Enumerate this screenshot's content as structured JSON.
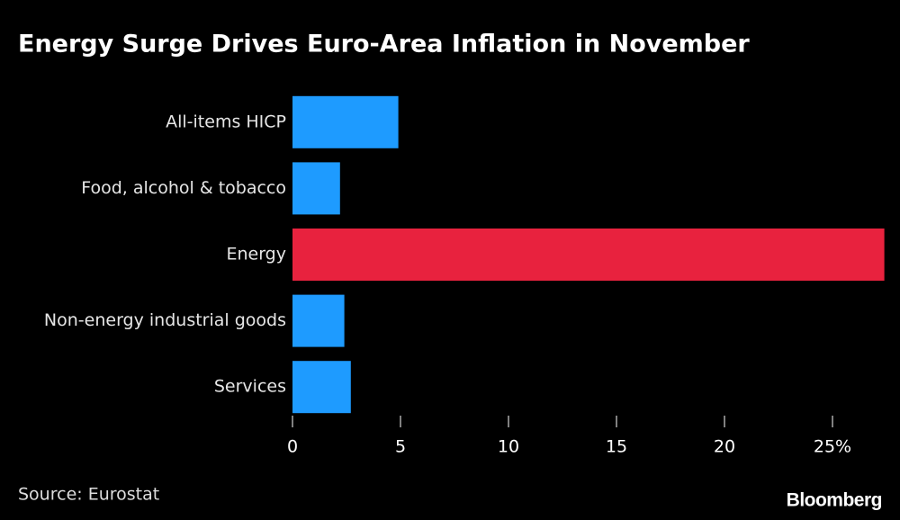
{
  "chart_data": {
    "type": "bar",
    "orientation": "horizontal",
    "title": "Energy Surge Drives Euro-Area Inflation in November",
    "categories": [
      "All-items HICP",
      "Food, alcohol & tobacco",
      "Energy",
      "Non-energy industrial goods",
      "Services"
    ],
    "values": [
      4.9,
      2.2,
      27.4,
      2.4,
      2.7
    ],
    "colors": [
      "#1e9bff",
      "#1e9bff",
      "#e8223e",
      "#1e9bff",
      "#1e9bff"
    ],
    "xlim": [
      0,
      27.5
    ],
    "xticks": [
      0,
      5,
      10,
      15,
      20,
      {
        "value": 25,
        "label": "25%"
      }
    ],
    "source": "Source: Eurostat",
    "brand": "Bloomberg"
  }
}
